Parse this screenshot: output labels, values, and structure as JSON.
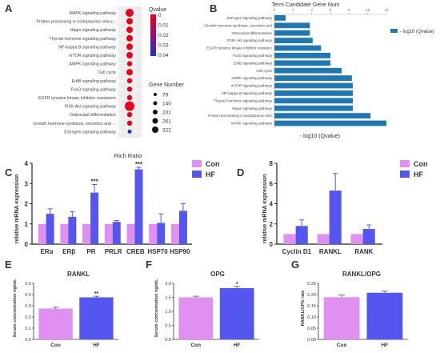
{
  "panels": {
    "A": {
      "letter": "A",
      "xlabel": "Rich Ratio",
      "legend_color_title": "Qvalue",
      "legend_color_ticks": [
        "0",
        "0.01",
        "0.02",
        "0.03",
        "0.04"
      ],
      "legend_size_title": "Gene Number",
      "legend_size_values": [
        "79",
        "140",
        "201",
        "261",
        "322"
      ],
      "pathways": [
        "MAPK signaling pathway",
        "Protein processing in endoplasmic reticu...",
        "Hippo signaling pathway",
        "Thyroid hormone signaling pathway",
        "NF-kappa B signaling pathway",
        "mTOR signaling pathway",
        "AMPK signaling pathway",
        "Cell cycle",
        "ErbB signaling pathway",
        "FoxO signaling pathway",
        "EGFR tyrosine kinase inhibitor resistance",
        "PI3K-Akt signaling pathway",
        "Osteoclast differentiation",
        "Growth hormone synthesis, secretion and ...",
        "Estrogen signaling pathway"
      ],
      "colors": {
        "high": "#e8001c",
        "low": "#1a2fd8"
      }
    },
    "B": {
      "letter": "B",
      "title": "Term Candidate Gene Num",
      "legend": "- log10 (Qvalue)",
      "xlabel": "- log10 (Qvalue)",
      "bar_color": "#1f78b4",
      "ticks": [
        "0",
        "2",
        "4",
        "6",
        "8",
        "10",
        "12"
      ]
    },
    "C": {
      "letter": "C",
      "ylabel": "relative mRNA expression",
      "legend_con": "Con",
      "legend_hf": "HF",
      "yticks": [
        "0",
        "1",
        "2",
        "3",
        "4"
      ]
    },
    "D": {
      "letter": "D",
      "ylabel": "relative mRNA expression",
      "legend_con": "Con",
      "legend_hf": "HF",
      "yticks": [
        "0",
        "2",
        "4",
        "6",
        "8"
      ]
    },
    "E": {
      "letter": "E",
      "title": "RANKL",
      "ylabel": "Serum concentration ng/mL",
      "yticks": [
        "0.0",
        "0.1",
        "0.2",
        "0.3",
        "0.4",
        "0.5"
      ],
      "sig": "**"
    },
    "F": {
      "letter": "F",
      "title": "OPG",
      "ylabel": "Serum concentration ng/mL",
      "yticks": [
        "0.0",
        "0.5",
        "1.0",
        "1.5",
        "2.0"
      ],
      "sig": "*"
    },
    "G": {
      "letter": "G",
      "title": "RANKL/OPG",
      "ylabel": "RANKL/OPG rate",
      "yticks": [
        "0.00",
        "0.05",
        "0.10",
        "0.15",
        "0.20",
        "0.25"
      ]
    }
  },
  "colors": {
    "con": "#e090f0",
    "hf": "#5555f0",
    "error": "#5555f0"
  },
  "chart_data": [
    {
      "panel": "A",
      "type": "scatter",
      "xlabel": "Rich Ratio",
      "categories": [
        "MAPK signaling pathway",
        "Protein processing in endoplasmic reticu...",
        "Hippo signaling pathway",
        "Thyroid hormone signaling pathway",
        "NF-kappa B signaling pathway",
        "mTOR signaling pathway",
        "AMPK signaling pathway",
        "Cell cycle",
        "ErbB signaling pathway",
        "FoxO signaling pathway",
        "EGFR tyrosine kinase inhibitor resistance",
        "PI3K-Akt signaling pathway",
        "Osteoclast differentiation",
        "Growth hormone synthesis, secretion and ...",
        "Estrogen signaling pathway"
      ],
      "size": [
        261,
        201,
        201,
        201,
        201,
        201,
        140,
        201,
        140,
        140,
        140,
        322,
        140,
        140,
        79
      ],
      "qvalue": [
        0.0,
        0.0,
        0.0,
        0.0,
        0.0,
        0.0,
        0.0,
        0.0,
        0.0,
        0.0,
        0.0,
        0.0,
        0.0,
        0.0,
        0.04
      ]
    },
    {
      "panel": "B",
      "type": "bar",
      "title": "Term Candidate Gene Num",
      "xlabel": "- log10 (Qvalue)",
      "categories": [
        "Estrogen signaling pathway",
        "Growth hormone synthesis, secretion and",
        "Osteoclast differentiation",
        "PI3K-Akt signaling pathway",
        "EGFR tyrosine kinase inhibitor resistanc",
        "FoxO signaling pathway",
        "ErbB signaling pathway",
        "Cell cycle",
        "AMPK signaling pathway",
        "mTOR signaling pathway",
        "NF-kappa B signaling pathway",
        "Thyroid hormone signaling pathway",
        "Hippo signaling pathway",
        "Protein processing in endoplasmic retic",
        "MAPK signaling pathway"
      ],
      "values": [
        1.2,
        3.8,
        3.8,
        4.1,
        5.0,
        6.0,
        6.0,
        7.2,
        8.3,
        8.4,
        8.4,
        8.4,
        8.4,
        10.3,
        12.0
      ],
      "xlim": [
        0,
        12
      ]
    },
    {
      "panel": "C",
      "type": "bar",
      "ylabel": "relative mRNA expression",
      "categories": [
        "ERα",
        "ERβ",
        "PR",
        "PRLR",
        "CREB",
        "HSP70",
        "HSP90"
      ],
      "series": [
        {
          "name": "Con",
          "values": [
            1,
            1,
            1,
            1,
            1,
            1,
            1
          ]
        },
        {
          "name": "HF",
          "values": [
            1.5,
            1.35,
            2.55,
            1.1,
            3.7,
            1.05,
            1.65
          ],
          "error": [
            0.25,
            0.25,
            0.4,
            0.07,
            0.1,
            0.45,
            0.35
          ]
        }
      ],
      "annotations": [
        "",
        "",
        "***",
        "",
        "***",
        "",
        ""
      ],
      "ylim": [
        0,
        4
      ]
    },
    {
      "panel": "D",
      "type": "bar",
      "ylabel": "relative mRNA expression",
      "categories": [
        "Cyclin D1",
        "RANKL",
        "RANK"
      ],
      "series": [
        {
          "name": "Con",
          "values": [
            1,
            1,
            1
          ]
        },
        {
          "name": "HF",
          "values": [
            1.8,
            5.3,
            1.5
          ],
          "error": [
            0.6,
            1.7,
            0.4
          ]
        }
      ],
      "ylim": [
        0,
        8
      ]
    },
    {
      "panel": "E",
      "type": "bar",
      "title": "RANKL",
      "ylabel": "Serum concentration ng/mL",
      "categories": [
        "Con",
        "HF"
      ],
      "values": [
        0.275,
        0.375
      ],
      "error": [
        0.012,
        0.01
      ],
      "annotations": [
        "",
        "**"
      ],
      "ylim": [
        0,
        0.5
      ]
    },
    {
      "panel": "F",
      "type": "bar",
      "title": "OPG",
      "ylabel": "Serum concentration ng/mL",
      "categories": [
        "Con",
        "HF"
      ],
      "values": [
        1.5,
        1.83
      ],
      "error": [
        0.04,
        0.06
      ],
      "annotations": [
        "",
        "*"
      ],
      "ylim": [
        0,
        2.0
      ]
    },
    {
      "panel": "G",
      "type": "bar",
      "title": "RANKL/OPG",
      "ylabel": "RANKL/OPG rate",
      "categories": [
        "Con",
        "HF"
      ],
      "values": [
        0.188,
        0.208
      ],
      "error": [
        0.01,
        0.007
      ],
      "ylim": [
        0,
        0.25
      ]
    }
  ]
}
